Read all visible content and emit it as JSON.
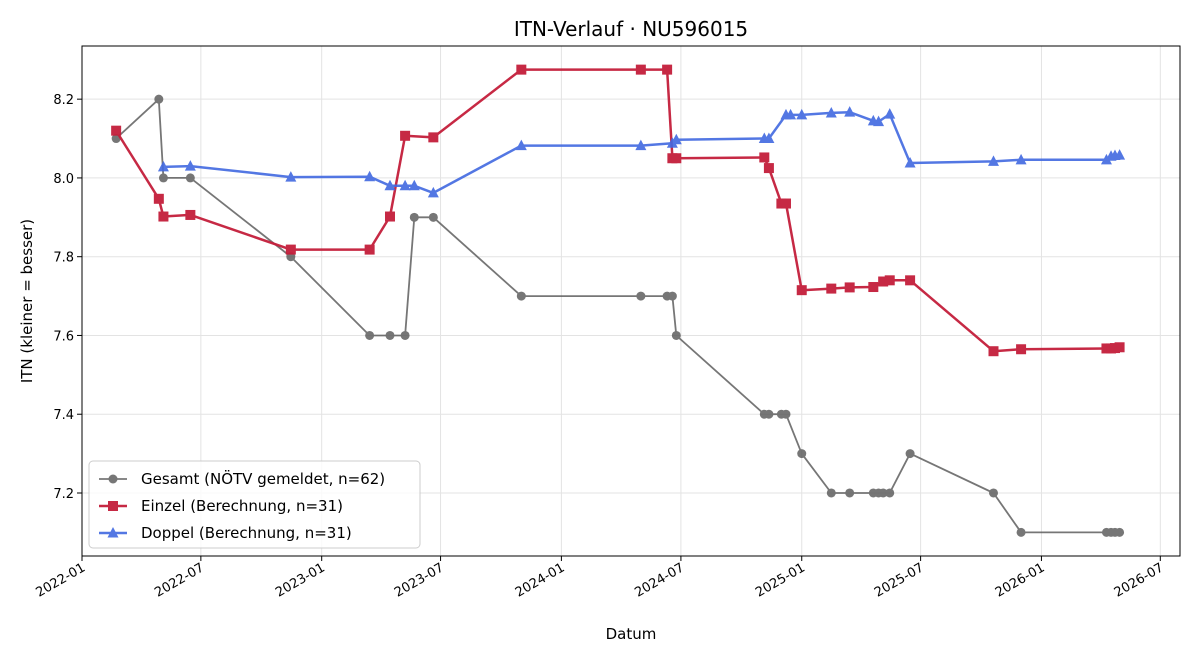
{
  "chart_data": {
    "type": "line",
    "title": "ITN-Verlauf · NU596015",
    "xlabel": "Datum",
    "ylabel": "ITN  (kleiner = besser)",
    "xlim": [
      "2022-01-01",
      "2026-07-31"
    ],
    "ylim": [
      7.04,
      8.335
    ],
    "x_ticks": [
      {
        "date": "2022-01-01",
        "label": "2022-01"
      },
      {
        "date": "2022-07-01",
        "label": "2022-07"
      },
      {
        "date": "2023-01-01",
        "label": "2023-01"
      },
      {
        "date": "2023-07-01",
        "label": "2023-07"
      },
      {
        "date": "2024-01-01",
        "label": "2024-01"
      },
      {
        "date": "2024-07-01",
        "label": "2024-07"
      },
      {
        "date": "2025-01-01",
        "label": "2025-01"
      },
      {
        "date": "2025-07-01",
        "label": "2025-07"
      },
      {
        "date": "2026-01-01",
        "label": "2026-01"
      },
      {
        "date": "2026-07-01",
        "label": "2026-07"
      }
    ],
    "y_ticks": [
      {
        "value": 7.2,
        "label": "7.2"
      },
      {
        "value": 7.4,
        "label": "7.4"
      },
      {
        "value": 7.6,
        "label": "7.6"
      },
      {
        "value": 7.8,
        "label": "7.8"
      },
      {
        "value": 8.0,
        "label": "8.0"
      },
      {
        "value": 8.2,
        "label": "8.2"
      }
    ],
    "grid": true,
    "legend_position": "lower-left",
    "series": [
      {
        "name": "Gesamt (NÖTV gemeldet, n=62)",
        "color": "#555555",
        "marker": "circle",
        "points": [
          [
            "2022-02-22",
            8.1
          ],
          [
            "2022-04-28",
            8.2
          ],
          [
            "2022-05-05",
            8.0
          ],
          [
            "2022-06-15",
            8.0
          ],
          [
            "2022-11-15",
            7.8
          ],
          [
            "2023-03-15",
            7.6
          ],
          [
            "2023-04-15",
            7.6
          ],
          [
            "2023-05-08",
            7.6
          ],
          [
            "2023-05-22",
            7.9
          ],
          [
            "2023-06-20",
            7.9
          ],
          [
            "2023-11-01",
            7.7
          ],
          [
            "2024-05-01",
            7.7
          ],
          [
            "2024-06-10",
            7.7
          ],
          [
            "2024-06-18",
            7.7
          ],
          [
            "2024-06-24",
            7.6
          ],
          [
            "2024-11-05",
            7.4
          ],
          [
            "2024-11-12",
            7.4
          ],
          [
            "2024-12-01",
            7.4
          ],
          [
            "2024-12-08",
            7.4
          ],
          [
            "2025-01-01",
            7.3
          ],
          [
            "2025-02-15",
            7.2
          ],
          [
            "2025-03-15",
            7.2
          ],
          [
            "2025-04-20",
            7.2
          ],
          [
            "2025-04-28",
            7.2
          ],
          [
            "2025-05-05",
            7.2
          ],
          [
            "2025-05-15",
            7.2
          ],
          [
            "2025-06-15",
            7.3
          ],
          [
            "2025-10-20",
            7.2
          ],
          [
            "2025-12-01",
            7.1
          ],
          [
            "2026-04-10",
            7.1
          ],
          [
            "2026-04-17",
            7.1
          ],
          [
            "2026-04-23",
            7.1
          ],
          [
            "2026-04-30",
            7.1
          ]
        ]
      },
      {
        "name": "Einzel (Berechnung, n=31)",
        "color": "#c41e3a",
        "marker": "square",
        "points": [
          [
            "2022-02-22",
            8.12
          ],
          [
            "2022-04-28",
            7.947
          ],
          [
            "2022-05-05",
            7.902
          ],
          [
            "2022-06-15",
            7.906
          ],
          [
            "2022-11-15",
            7.818
          ],
          [
            "2023-03-15",
            7.818
          ],
          [
            "2023-04-15",
            7.902
          ],
          [
            "2023-05-08",
            8.107
          ],
          [
            "2023-06-20",
            8.103
          ],
          [
            "2023-11-01",
            8.275
          ],
          [
            "2024-05-01",
            8.275
          ],
          [
            "2024-06-10",
            8.275
          ],
          [
            "2024-06-18",
            8.05
          ],
          [
            "2024-06-24",
            8.05
          ],
          [
            "2024-11-05",
            8.052
          ],
          [
            "2024-11-12",
            8.025
          ],
          [
            "2024-12-01",
            7.935
          ],
          [
            "2024-12-08",
            7.935
          ],
          [
            "2025-01-01",
            7.715
          ],
          [
            "2025-02-15",
            7.719
          ],
          [
            "2025-03-15",
            7.722
          ],
          [
            "2025-04-20",
            7.723
          ],
          [
            "2025-05-05",
            7.737
          ],
          [
            "2025-05-15",
            7.74
          ],
          [
            "2025-06-15",
            7.74
          ],
          [
            "2025-10-20",
            7.56
          ],
          [
            "2025-12-01",
            7.565
          ],
          [
            "2026-04-10",
            7.567
          ],
          [
            "2026-04-17",
            7.567
          ],
          [
            "2026-04-23",
            7.568
          ],
          [
            "2026-04-30",
            7.57
          ]
        ]
      },
      {
        "name": "Doppel (Berechnung, n=31)",
        "color": "#4169e1",
        "marker": "triangle",
        "points": [
          [
            "2022-05-05",
            8.028
          ],
          [
            "2022-06-15",
            8.03
          ],
          [
            "2022-11-15",
            8.002
          ],
          [
            "2023-03-15",
            8.003
          ],
          [
            "2023-04-15",
            7.98
          ],
          [
            "2023-05-08",
            7.98
          ],
          [
            "2023-05-22",
            7.98
          ],
          [
            "2023-06-20",
            7.962
          ],
          [
            "2023-11-01",
            8.082
          ],
          [
            "2024-05-01",
            8.082
          ],
          [
            "2024-06-18",
            8.088
          ],
          [
            "2024-06-24",
            8.097
          ],
          [
            "2024-11-05",
            8.1
          ],
          [
            "2024-11-12",
            8.1
          ],
          [
            "2024-12-08",
            8.16
          ],
          [
            "2024-12-15",
            8.16
          ],
          [
            "2025-01-01",
            8.16
          ],
          [
            "2025-02-15",
            8.165
          ],
          [
            "2025-03-15",
            8.167
          ],
          [
            "2025-04-20",
            8.145
          ],
          [
            "2025-04-28",
            8.143
          ],
          [
            "2025-05-15",
            8.162
          ],
          [
            "2025-06-15",
            8.038
          ],
          [
            "2025-10-20",
            8.042
          ],
          [
            "2025-12-01",
            8.046
          ],
          [
            "2026-04-10",
            8.046
          ],
          [
            "2026-04-17",
            8.055
          ],
          [
            "2026-04-23",
            8.057
          ],
          [
            "2026-04-30",
            8.058
          ]
        ]
      }
    ]
  }
}
